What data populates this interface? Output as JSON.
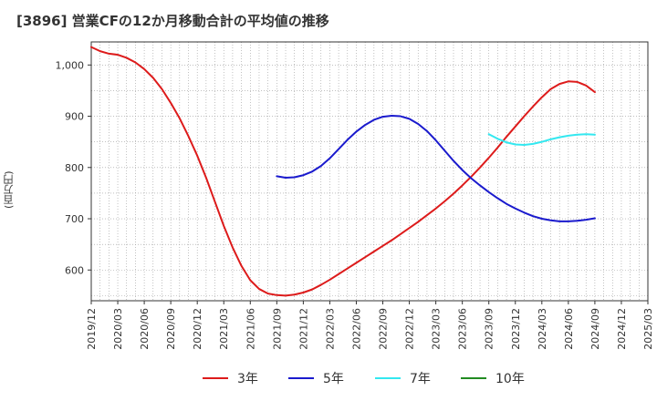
{
  "title": "[3896]  営業CFの12か月移動合計の平均値の推移",
  "y_axis_title": "(百万円)",
  "colors": {
    "3年": "#dd1b1b",
    "5年": "#1a1acd",
    "7年": "#33e8f0",
    "10年": "#228b22"
  },
  "chart_data": {
    "type": "line",
    "title": "[3896]  営業CFの12か月移動合計の平均値の推移",
    "xlabel": "",
    "ylabel": "(百万円)",
    "ylim": [
      540,
      1045
    ],
    "yticks": [
      600,
      700,
      800,
      900,
      1000
    ],
    "ytick_labels": [
      "600",
      "700",
      "800",
      "900",
      "1,000"
    ],
    "xlim": [
      "2019-12",
      "2025-03"
    ],
    "xtick_labels": [
      "2019/12",
      "2020/03",
      "2020/06",
      "2020/09",
      "2020/12",
      "2021/03",
      "2021/06",
      "2021/09",
      "2021/12",
      "2022/03",
      "2022/06",
      "2022/09",
      "2022/12",
      "2023/03",
      "2023/06",
      "2023/09",
      "2023/12",
      "2024/03",
      "2024/06",
      "2024/09",
      "2024/12",
      "2025/03"
    ],
    "grid": true,
    "legend_position": "bottom",
    "series": [
      {
        "name": "3年",
        "color": "#dd1b1b",
        "points": [
          [
            "2019-12",
            1035
          ],
          [
            "2020-01",
            1027
          ],
          [
            "2020-02",
            1022
          ],
          [
            "2020-03",
            1020
          ],
          [
            "2020-04",
            1014
          ],
          [
            "2020-05",
            1005
          ],
          [
            "2020-06",
            992
          ],
          [
            "2020-07",
            975
          ],
          [
            "2020-08",
            953
          ],
          [
            "2020-09",
            926
          ],
          [
            "2020-10",
            896
          ],
          [
            "2020-11",
            861
          ],
          [
            "2020-12",
            823
          ],
          [
            "2021-01",
            780
          ],
          [
            "2021-02",
            733
          ],
          [
            "2021-03",
            686
          ],
          [
            "2021-04",
            644
          ],
          [
            "2021-05",
            608
          ],
          [
            "2021-06",
            580
          ],
          [
            "2021-07",
            563
          ],
          [
            "2021-08",
            554
          ],
          [
            "2021-09",
            551
          ],
          [
            "2021-10",
            550
          ],
          [
            "2021-11",
            552
          ],
          [
            "2021-12",
            556
          ],
          [
            "2022-01",
            562
          ],
          [
            "2022-02",
            571
          ],
          [
            "2022-03",
            581
          ],
          [
            "2022-04",
            592
          ],
          [
            "2022-05",
            603
          ],
          [
            "2022-06",
            614
          ],
          [
            "2022-07",
            625
          ],
          [
            "2022-08",
            636
          ],
          [
            "2022-09",
            647
          ],
          [
            "2022-10",
            658
          ],
          [
            "2022-11",
            670
          ],
          [
            "2022-12",
            682
          ],
          [
            "2023-01",
            694
          ],
          [
            "2023-02",
            707
          ],
          [
            "2023-03",
            720
          ],
          [
            "2023-04",
            734
          ],
          [
            "2023-05",
            749
          ],
          [
            "2023-06",
            765
          ],
          [
            "2023-07",
            782
          ],
          [
            "2023-08",
            800
          ],
          [
            "2023-09",
            819
          ],
          [
            "2023-10",
            839
          ],
          [
            "2023-11",
            860
          ],
          [
            "2023-12",
            880
          ],
          [
            "2024-01",
            900
          ],
          [
            "2024-02",
            919
          ],
          [
            "2024-03",
            937
          ],
          [
            "2024-04",
            953
          ],
          [
            "2024-05",
            963
          ],
          [
            "2024-06",
            968
          ],
          [
            "2024-07",
            967
          ],
          [
            "2024-08",
            960
          ],
          [
            "2024-09",
            947
          ]
        ]
      },
      {
        "name": "5年",
        "color": "#1a1acd",
        "points": [
          [
            "2021-09",
            783
          ],
          [
            "2021-10",
            780
          ],
          [
            "2021-11",
            781
          ],
          [
            "2021-12",
            785
          ],
          [
            "2022-01",
            792
          ],
          [
            "2022-02",
            803
          ],
          [
            "2022-03",
            818
          ],
          [
            "2022-04",
            836
          ],
          [
            "2022-05",
            854
          ],
          [
            "2022-06",
            870
          ],
          [
            "2022-07",
            883
          ],
          [
            "2022-08",
            893
          ],
          [
            "2022-09",
            899
          ],
          [
            "2022-10",
            901
          ],
          [
            "2022-11",
            900
          ],
          [
            "2022-12",
            895
          ],
          [
            "2023-01",
            885
          ],
          [
            "2023-02",
            871
          ],
          [
            "2023-03",
            853
          ],
          [
            "2023-04",
            833
          ],
          [
            "2023-05",
            813
          ],
          [
            "2023-06",
            795
          ],
          [
            "2023-07",
            779
          ],
          [
            "2023-08",
            765
          ],
          [
            "2023-09",
            752
          ],
          [
            "2023-10",
            740
          ],
          [
            "2023-11",
            729
          ],
          [
            "2023-12",
            720
          ],
          [
            "2024-01",
            712
          ],
          [
            "2024-02",
            705
          ],
          [
            "2024-03",
            700
          ],
          [
            "2024-04",
            697
          ],
          [
            "2024-05",
            695
          ],
          [
            "2024-06",
            695
          ],
          [
            "2024-07",
            696
          ],
          [
            "2024-08",
            698
          ],
          [
            "2024-09",
            701
          ]
        ]
      },
      {
        "name": "7年",
        "color": "#33e8f0",
        "points": [
          [
            "2023-09",
            865
          ],
          [
            "2023-10",
            856
          ],
          [
            "2023-11",
            849
          ],
          [
            "2023-12",
            845
          ],
          [
            "2024-01",
            844
          ],
          [
            "2024-02",
            846
          ],
          [
            "2024-03",
            850
          ],
          [
            "2024-04",
            855
          ],
          [
            "2024-05",
            859
          ],
          [
            "2024-06",
            862
          ],
          [
            "2024-07",
            864
          ],
          [
            "2024-08",
            865
          ],
          [
            "2024-09",
            864
          ]
        ]
      },
      {
        "name": "10年",
        "color": "#228b22",
        "points": []
      }
    ]
  }
}
